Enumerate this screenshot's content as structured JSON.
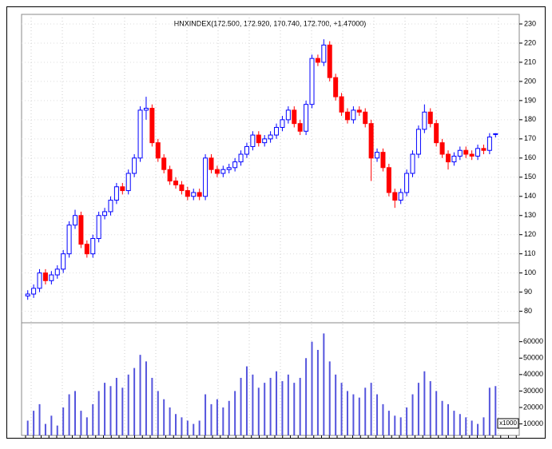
{
  "chart_data": {
    "type": "candlestick",
    "title": "HNXINDEX(172.500, 172.920, 170.740, 172.700, +1.47000)",
    "open": [
      88,
      89,
      92,
      100,
      96,
      99,
      102,
      110,
      125,
      130,
      115,
      110,
      118,
      130,
      132,
      138,
      145,
      143,
      152,
      160,
      185,
      186,
      168,
      160,
      154,
      148,
      146,
      143,
      140,
      142,
      140,
      160,
      154,
      152,
      154,
      155,
      158,
      162,
      166,
      172,
      168,
      170,
      172,
      176,
      180,
      185,
      178,
      174,
      188,
      212,
      210,
      219,
      202,
      192,
      184,
      180,
      185,
      184,
      178,
      160,
      163,
      155,
      142,
      138,
      142,
      152,
      162,
      175,
      184,
      178,
      168,
      162,
      158,
      161,
      164,
      162,
      161,
      165,
      164,
      172.5
    ],
    "high": [
      91,
      94,
      102,
      102,
      101,
      104,
      112,
      127,
      133,
      132,
      117,
      120,
      132,
      134,
      140,
      147,
      147,
      154,
      162,
      187,
      192,
      188,
      170,
      162,
      156,
      150,
      148,
      145,
      144,
      144,
      162,
      162,
      156,
      156,
      157,
      160,
      164,
      168,
      174,
      174,
      172,
      174,
      178,
      182,
      187,
      187,
      180,
      190,
      214,
      214,
      222,
      221,
      204,
      194,
      186,
      187,
      187,
      186,
      180,
      165,
      165,
      157,
      144,
      144,
      154,
      164,
      177,
      188,
      186,
      180,
      170,
      164,
      163,
      166,
      166,
      164,
      167,
      167,
      173,
      172.92
    ],
    "low": [
      86,
      87,
      90,
      94,
      94,
      97,
      100,
      108,
      123,
      113,
      108,
      108,
      116,
      128,
      130,
      136,
      141,
      141,
      150,
      158,
      180,
      166,
      158,
      152,
      146,
      144,
      141,
      138,
      138,
      138,
      138,
      152,
      150,
      150,
      152,
      153,
      156,
      160,
      164,
      166,
      166,
      168,
      170,
      174,
      178,
      176,
      172,
      172,
      186,
      208,
      208,
      200,
      190,
      182,
      178,
      178,
      182,
      176,
      148,
      158,
      153,
      140,
      134,
      136,
      140,
      150,
      160,
      173,
      176,
      166,
      160,
      154,
      156,
      159,
      160,
      159,
      159,
      162,
      162,
      170.74
    ],
    "close": [
      89,
      92,
      100,
      96,
      99,
      102,
      110,
      125,
      130,
      115,
      110,
      118,
      130,
      132,
      138,
      145,
      143,
      152,
      160,
      185,
      186,
      168,
      160,
      154,
      148,
      146,
      143,
      140,
      142,
      140,
      160,
      154,
      152,
      154,
      155,
      158,
      162,
      166,
      172,
      168,
      170,
      172,
      176,
      180,
      185,
      178,
      174,
      188,
      212,
      210,
      219,
      202,
      192,
      184,
      180,
      185,
      184,
      178,
      160,
      163,
      155,
      142,
      138,
      142,
      152,
      162,
      175,
      184,
      178,
      168,
      162,
      158,
      161,
      164,
      162,
      161,
      165,
      164,
      171,
      172.7
    ],
    "volume": [
      12000,
      18000,
      22000,
      10000,
      15000,
      9000,
      20000,
      28000,
      30000,
      18000,
      14000,
      22000,
      30000,
      35000,
      33000,
      38000,
      32000,
      40000,
      44000,
      52000,
      48000,
      38000,
      30000,
      25000,
      20000,
      16000,
      14000,
      12000,
      10000,
      12000,
      28000,
      22000,
      25000,
      20000,
      24000,
      30000,
      38000,
      45000,
      40000,
      32000,
      35000,
      38000,
      42000,
      36000,
      40000,
      35000,
      38000,
      50000,
      60000,
      55000,
      65000,
      48000,
      40000,
      35000,
      30000,
      28000,
      26000,
      32000,
      35000,
      28000,
      22000,
      18000,
      15000,
      14000,
      20000,
      28000,
      35000,
      42000,
      36000,
      30000,
      24000,
      22000,
      18000,
      16000,
      14000,
      12000,
      10000,
      14000,
      32000,
      33000
    ],
    "ylim": [
      74,
      235
    ],
    "yticks": [
      80,
      90,
      100,
      110,
      120,
      130,
      140,
      150,
      160,
      170,
      180,
      190,
      200,
      210,
      220,
      230
    ],
    "y2lim": [
      3000,
      71500
    ],
    "y2ticks": [
      10000,
      20000,
      30000,
      40000,
      50000,
      60000
    ],
    "volume_unit": "x1000",
    "up_color": "#0000ff",
    "down_color": "#ff0000",
    "volume_color": "#5555dd",
    "grid": true
  }
}
